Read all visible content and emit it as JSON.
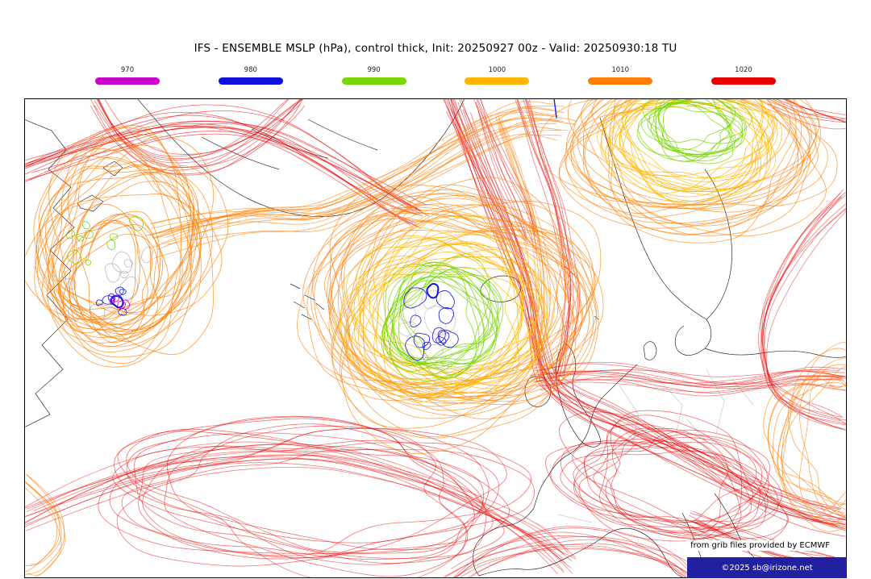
{
  "title": "IFS - ENSEMBLE MSLP (hPa), control thick, Init: 20250927 00z - Valid: 20250930:18 TU",
  "legend": {
    "items": [
      {
        "label": "970",
        "hpa": 970,
        "color": "#cc00cc"
      },
      {
        "label": "980",
        "hpa": 980,
        "color": "#1111dd"
      },
      {
        "label": "990",
        "hpa": 990,
        "color": "#77d700"
      },
      {
        "label": "1000",
        "hpa": 1000,
        "color": "#ffb400"
      },
      {
        "label": "1010",
        "hpa": 1010,
        "color": "#ff7d00"
      },
      {
        "label": "1020",
        "hpa": 1020,
        "color": "#e80000"
      }
    ]
  },
  "map": {
    "colors": {
      "coastline": "#151515",
      "country_borders": "#c4c4c4",
      "gray_member": "#999999",
      "border_frame": "#000000",
      "sea": "#ffffff"
    }
  },
  "footer": {
    "attribution": "from grib files provided by ECMWF",
    "copyright": "©2025 sb@irizone.net",
    "copyright_bg": "#2020a0"
  }
}
